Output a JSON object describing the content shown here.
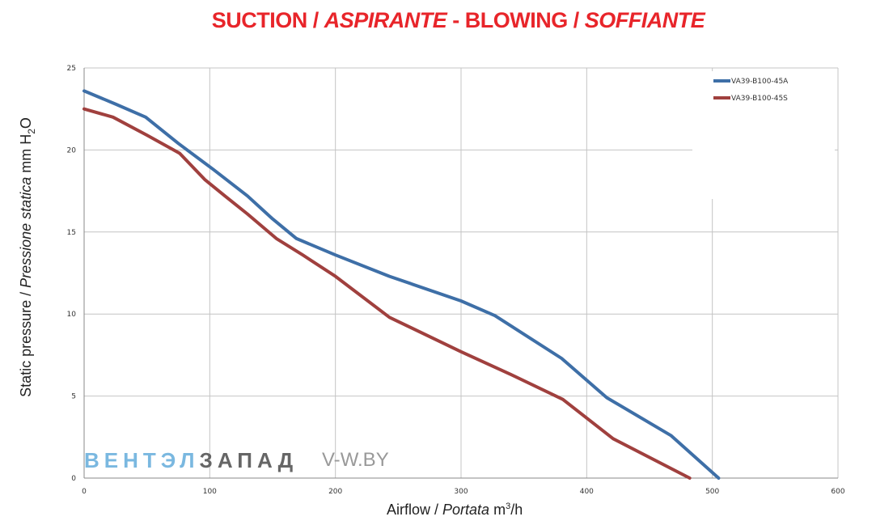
{
  "title": {
    "part1": "SUCTION / ",
    "part2": "ASPIRANTE",
    "part3": "  - BLOWING / ",
    "part4": "SOFFIANTE"
  },
  "ylabel": {
    "part1": "Static pressure / ",
    "part2": "Pressione statica",
    "part3": "  mm  H",
    "sub": "2",
    "part4": "O"
  },
  "xlabel": {
    "part1": "Airflow / ",
    "part2": "Portata",
    "part3": "  m",
    "sup": "3",
    "part4": "/h"
  },
  "watermark": {
    "part1": "ВЕНТЭЛ",
    "part2": "ЗАПАД",
    "url_part1": "V-",
    "url_part2": "W.BY",
    "color1": "#7ab8e0",
    "color2": "#666666"
  },
  "chart_data": {
    "type": "line",
    "xlim": [
      0,
      600
    ],
    "ylim": [
      0,
      25
    ],
    "x_ticks": [
      0,
      100,
      200,
      300,
      400,
      500,
      600
    ],
    "y_ticks": [
      0,
      5,
      10,
      15,
      20,
      25
    ],
    "grid": true,
    "legend_position": "top-right",
    "series": [
      {
        "name": "VA39-B100-45A",
        "color": "#3e6fa7",
        "points": [
          [
            0,
            23.6
          ],
          [
            25,
            22.8
          ],
          [
            49,
            22.0
          ],
          [
            75,
            20.4
          ],
          [
            103,
            18.8
          ],
          [
            130,
            17.2
          ],
          [
            150,
            15.8
          ],
          [
            169,
            14.6
          ],
          [
            200,
            13.6
          ],
          [
            243,
            12.3
          ],
          [
            300,
            10.8
          ],
          [
            327,
            9.9
          ],
          [
            380,
            7.3
          ],
          [
            416,
            4.9
          ],
          [
            467,
            2.6
          ],
          [
            505,
            0
          ]
        ]
      },
      {
        "name": "VA39-B100-45S",
        "color": "#a0403e",
        "points": [
          [
            0,
            22.5
          ],
          [
            23,
            22.0
          ],
          [
            50,
            20.9
          ],
          [
            76,
            19.8
          ],
          [
            96,
            18.2
          ],
          [
            112,
            17.2
          ],
          [
            130,
            16.1
          ],
          [
            153,
            14.6
          ],
          [
            174,
            13.6
          ],
          [
            200,
            12.3
          ],
          [
            243,
            9.8
          ],
          [
            300,
            7.7
          ],
          [
            340,
            6.3
          ],
          [
            381,
            4.8
          ],
          [
            421,
            2.4
          ],
          [
            482,
            0
          ]
        ]
      }
    ]
  }
}
